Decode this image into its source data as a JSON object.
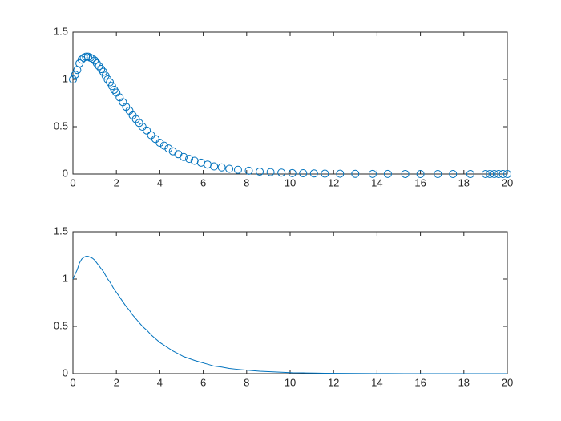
{
  "chart_data": [
    {
      "type": "scatter",
      "color": "#0072bd",
      "x": [
        0,
        0.1,
        0.2,
        0.3,
        0.4,
        0.5,
        0.6,
        0.7,
        0.8,
        0.9,
        1.0,
        1.1,
        1.2,
        1.3,
        1.4,
        1.5,
        1.6,
        1.7,
        1.8,
        1.9,
        2.0,
        2.15,
        2.3,
        2.45,
        2.6,
        2.75,
        2.9,
        3.05,
        3.2,
        3.4,
        3.6,
        3.8,
        4.0,
        4.2,
        4.4,
        4.6,
        4.85,
        5.1,
        5.35,
        5.6,
        5.9,
        6.2,
        6.5,
        6.85,
        7.2,
        7.6,
        8.1,
        8.6,
        9.1,
        9.6,
        10.1,
        10.6,
        11.1,
        11.6,
        12.3,
        13.0,
        13.8,
        14.5,
        15.3,
        16.0,
        16.8,
        17.5,
        18.3,
        19.0,
        19.2,
        19.4,
        19.6,
        19.8,
        20.0
      ],
      "values": [
        1.0,
        1.05,
        1.1,
        1.17,
        1.21,
        1.23,
        1.24,
        1.24,
        1.23,
        1.22,
        1.2,
        1.17,
        1.14,
        1.11,
        1.08,
        1.04,
        1.0,
        0.97,
        0.93,
        0.89,
        0.86,
        0.81,
        0.76,
        0.71,
        0.67,
        0.62,
        0.58,
        0.54,
        0.5,
        0.46,
        0.41,
        0.37,
        0.33,
        0.3,
        0.27,
        0.24,
        0.21,
        0.18,
        0.16,
        0.14,
        0.12,
        0.1,
        0.08,
        0.07,
        0.055,
        0.045,
        0.035,
        0.025,
        0.02,
        0.015,
        0.01,
        0.008,
        0.006,
        0.004,
        0.003,
        0.002,
        0.001,
        0.001,
        0.0005,
        0,
        0,
        0,
        0,
        0,
        0,
        0,
        0,
        0,
        0
      ],
      "xlim": [
        0,
        20
      ],
      "xticks": [
        0,
        2,
        4,
        6,
        8,
        10,
        12,
        14,
        16,
        18,
        20
      ],
      "ylim": [
        0,
        1.5
      ],
      "yticks": [
        0,
        0.5,
        1,
        1.5
      ]
    },
    {
      "type": "line",
      "color": "#0072bd",
      "x": [
        0,
        0.1,
        0.2,
        0.3,
        0.4,
        0.5,
        0.6,
        0.7,
        0.8,
        0.9,
        1.0,
        1.1,
        1.2,
        1.3,
        1.4,
        1.5,
        1.6,
        1.7,
        1.8,
        1.9,
        2.0,
        2.15,
        2.3,
        2.45,
        2.6,
        2.75,
        2.9,
        3.05,
        3.2,
        3.4,
        3.6,
        3.8,
        4.0,
        4.2,
        4.4,
        4.6,
        4.85,
        5.1,
        5.35,
        5.6,
        5.9,
        6.2,
        6.5,
        6.85,
        7.2,
        7.6,
        8.1,
        8.6,
        9.1,
        9.6,
        10.1,
        10.6,
        11.1,
        11.6,
        12.3,
        13.0,
        13.8,
        14.5,
        15.3,
        16.0,
        16.8,
        17.5,
        18.3,
        19.0,
        19.2,
        19.4,
        19.6,
        19.8,
        20.0
      ],
      "values": [
        1.0,
        1.05,
        1.1,
        1.17,
        1.21,
        1.23,
        1.24,
        1.24,
        1.23,
        1.22,
        1.2,
        1.17,
        1.14,
        1.11,
        1.08,
        1.04,
        1.0,
        0.97,
        0.93,
        0.89,
        0.86,
        0.81,
        0.76,
        0.71,
        0.67,
        0.62,
        0.58,
        0.54,
        0.5,
        0.46,
        0.41,
        0.37,
        0.33,
        0.3,
        0.27,
        0.24,
        0.21,
        0.18,
        0.16,
        0.14,
        0.12,
        0.1,
        0.08,
        0.07,
        0.055,
        0.045,
        0.035,
        0.025,
        0.02,
        0.015,
        0.01,
        0.008,
        0.006,
        0.004,
        0.003,
        0.002,
        0.001,
        0.001,
        0.0005,
        0,
        0,
        0,
        0,
        0,
        0,
        0,
        0,
        0,
        0
      ],
      "xlim": [
        0,
        20
      ],
      "xticks": [
        0,
        2,
        4,
        6,
        8,
        10,
        12,
        14,
        16,
        18,
        20
      ],
      "ylim": [
        0,
        1.5
      ],
      "yticks": [
        0,
        0.5,
        1,
        1.5
      ]
    }
  ]
}
